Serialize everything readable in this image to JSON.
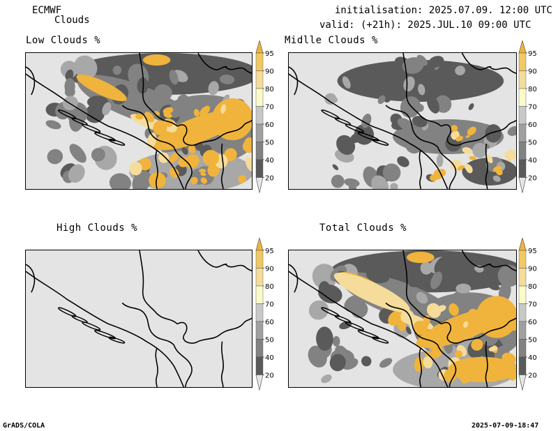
{
  "header": {
    "model": "ECMWF",
    "field": "Clouds",
    "init": "initialisation: 2025.07.09. 12:00 UTC",
    "valid": "valid: (+21h): 2025.JUL.10 09:00 UTC"
  },
  "panels": [
    {
      "title": "Low Clouds %"
    },
    {
      "title": "Midlle Clouds %"
    },
    {
      "title": "High Clouds %"
    },
    {
      "title": "Total Clouds %"
    }
  ],
  "colorbar": {
    "levels": [
      "20",
      "40",
      "50",
      "60",
      "70",
      "80",
      "90",
      "95"
    ],
    "colors": [
      "#e6e6e6",
      "#5a5a5a",
      "#828282",
      "#a0a0a0",
      "#c8c8c8",
      "#fafac8",
      "#f5dc9b",
      "#f0c864",
      "#f0b43c"
    ]
  },
  "footer": {
    "left": "GrADS/COLA",
    "right": "2025-07-09-18:47"
  }
}
